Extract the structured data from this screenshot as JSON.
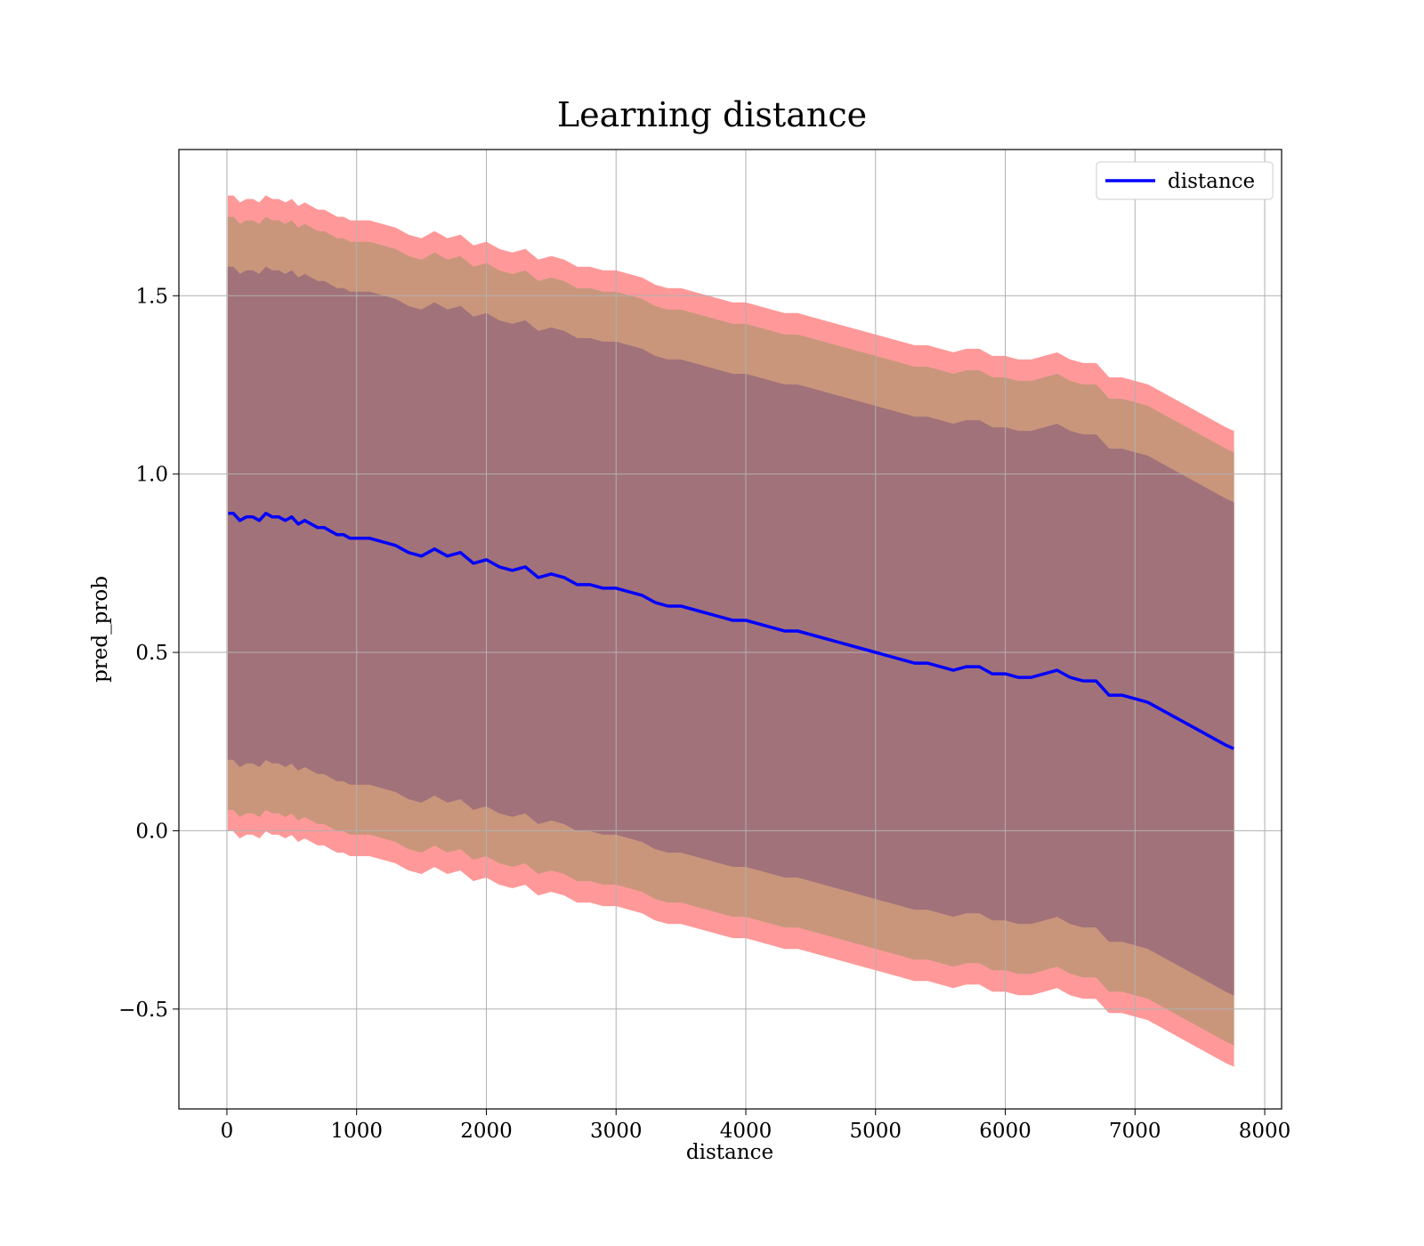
{
  "chart_data": {
    "type": "line",
    "title": "Learning distance",
    "xlabel": "distance",
    "ylabel": "pred_prob",
    "xlim": [
      -370,
      8130
    ],
    "ylim": [
      -0.78,
      1.91
    ],
    "xticks": [
      0,
      1000,
      2000,
      3000,
      4000,
      5000,
      6000,
      7000,
      8000
    ],
    "xtick_labels": [
      "0",
      "1000",
      "2000",
      "3000",
      "4000",
      "5000",
      "6000",
      "7000",
      "8000"
    ],
    "yticks": [
      -0.5,
      0.0,
      0.5,
      1.0,
      1.5
    ],
    "ytick_labels": [
      "−0.5",
      "0.0",
      "0.5",
      "1.0",
      "1.5"
    ],
    "grid": true,
    "legend": {
      "placement": "top-right",
      "entries": [
        "distance"
      ]
    },
    "colors": {
      "line": "#0000ff",
      "band_outer": "#ff9999",
      "band_middle": "#c9967c",
      "band_inner": "#a2727a"
    },
    "series": [
      {
        "name": "distance",
        "x": [
          10,
          50,
          100,
          150,
          200,
          250,
          300,
          350,
          400,
          450,
          500,
          550,
          600,
          650,
          700,
          750,
          800,
          850,
          900,
          950,
          1000,
          1100,
          1200,
          1300,
          1400,
          1500,
          1600,
          1700,
          1800,
          1900,
          2000,
          2100,
          2200,
          2300,
          2400,
          2500,
          2600,
          2700,
          2800,
          2900,
          3000,
          3100,
          3200,
          3300,
          3400,
          3500,
          3600,
          3700,
          3800,
          3900,
          4000,
          4100,
          4200,
          4300,
          4400,
          4500,
          4600,
          4700,
          4800,
          4900,
          5000,
          5100,
          5200,
          5300,
          5400,
          5500,
          5600,
          5700,
          5800,
          5900,
          6000,
          6100,
          6200,
          6300,
          6400,
          6500,
          6600,
          6700,
          6800,
          6900,
          7000,
          7100,
          7200,
          7300,
          7400,
          7500,
          7600,
          7700,
          7760
        ],
        "y": [
          0.89,
          0.89,
          0.87,
          0.88,
          0.88,
          0.87,
          0.89,
          0.88,
          0.88,
          0.87,
          0.88,
          0.86,
          0.87,
          0.86,
          0.85,
          0.85,
          0.84,
          0.83,
          0.83,
          0.82,
          0.82,
          0.82,
          0.81,
          0.8,
          0.78,
          0.77,
          0.79,
          0.77,
          0.78,
          0.75,
          0.76,
          0.74,
          0.73,
          0.74,
          0.71,
          0.72,
          0.71,
          0.69,
          0.69,
          0.68,
          0.68,
          0.67,
          0.66,
          0.64,
          0.63,
          0.63,
          0.62,
          0.61,
          0.6,
          0.59,
          0.59,
          0.58,
          0.57,
          0.56,
          0.56,
          0.55,
          0.54,
          0.53,
          0.52,
          0.51,
          0.5,
          0.49,
          0.48,
          0.47,
          0.47,
          0.46,
          0.45,
          0.46,
          0.46,
          0.44,
          0.44,
          0.43,
          0.43,
          0.44,
          0.45,
          0.43,
          0.42,
          0.42,
          0.38,
          0.38,
          0.37,
          0.36,
          0.34,
          0.32,
          0.3,
          0.28,
          0.26,
          0.24,
          0.23
        ]
      }
    ],
    "bands": [
      {
        "offset_low": -0.89,
        "offset_high": 0.89,
        "color_key": "band_outer"
      },
      {
        "offset_low": -0.83,
        "offset_high": 0.83,
        "color_key": "band_middle"
      },
      {
        "offset_low": -0.69,
        "offset_high": 0.69,
        "color_key": "band_inner"
      }
    ]
  }
}
